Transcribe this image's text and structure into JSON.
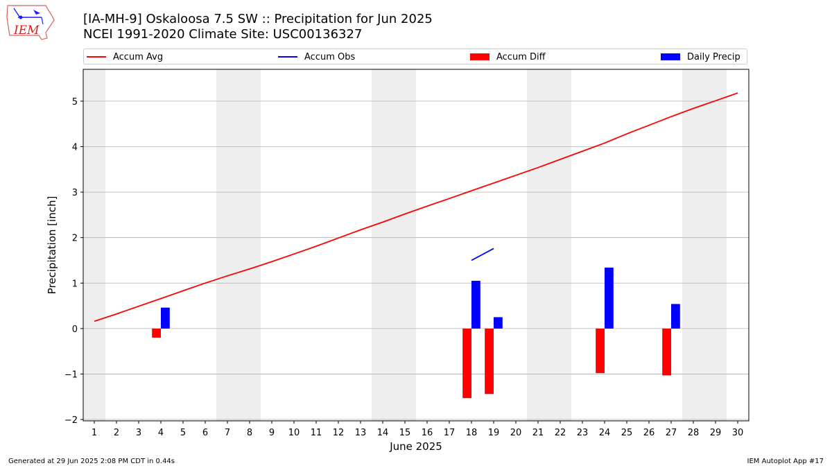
{
  "header": {
    "title_line1": "[IA-MH-9] Oskaloosa 7.5 SW :: Precipitation for Jun 2025",
    "title_line2": "NCEI 1991-2020 Climate Site: USC00136327"
  },
  "logo": {
    "text": "IEM",
    "icon": "iem-iowa-logo"
  },
  "footer": {
    "left": "Generated at 29 Jun 2025 2:08 PM CDT in 0.44s",
    "right": "IEM Autoplot App #17"
  },
  "colors": {
    "avg": "#ff0000",
    "obs": "#0000ff",
    "diff": "#ff0000",
    "daily": "#0000ff",
    "weekend_band": "#eeeeee",
    "grid": "#b0b0b0"
  },
  "chart_data": {
    "type": "bar",
    "xlabel": "June 2025",
    "ylabel": "Precipitation [inch]",
    "xlim": [
      0.5,
      30.5
    ],
    "ylim": [
      -2.03,
      5.7
    ],
    "yticks": [
      -2,
      -1,
      0,
      1,
      2,
      3,
      4,
      5
    ],
    "ytick_labels": [
      "−2",
      "−1",
      "0",
      "1",
      "2",
      "3",
      "4",
      "5"
    ],
    "x_days": [
      1,
      2,
      3,
      4,
      5,
      6,
      7,
      8,
      9,
      10,
      11,
      12,
      13,
      14,
      15,
      16,
      17,
      18,
      19,
      20,
      21,
      22,
      23,
      24,
      25,
      26,
      27,
      28,
      29,
      30
    ],
    "weekend_spans": [
      [
        0.5,
        1.5
      ],
      [
        6.5,
        8.5
      ],
      [
        13.5,
        15.5
      ],
      [
        20.5,
        22.5
      ],
      [
        27.5,
        29.5
      ]
    ],
    "legend": [
      "Accum Avg",
      "Accum Obs",
      "Accum Diff",
      "Daily Precip"
    ],
    "grid": "horizontal",
    "series": [
      {
        "name": "Accum Avg",
        "kind": "line",
        "x": [
          1,
          2,
          3,
          4,
          5,
          6,
          7,
          8,
          9,
          10,
          11,
          12,
          13,
          14,
          15,
          16,
          17,
          18,
          19,
          20,
          21,
          22,
          23,
          24,
          25,
          26,
          27,
          28,
          29,
          30
        ],
        "values": [
          0.16,
          0.32,
          0.49,
          0.66,
          0.83,
          1.0,
          1.16,
          1.31,
          1.47,
          1.64,
          1.81,
          1.99,
          2.17,
          2.34,
          2.52,
          2.69,
          2.86,
          3.03,
          3.2,
          3.37,
          3.54,
          3.72,
          3.9,
          4.08,
          4.28,
          4.47,
          4.66,
          4.84,
          5.01,
          5.18
        ]
      },
      {
        "name": "Accum Obs",
        "kind": "line",
        "x": [
          18,
          19
        ],
        "values": [
          1.5,
          1.76
        ]
      },
      {
        "name": "Accum Diff",
        "kind": "bar",
        "offset": -0.2,
        "x": [
          4,
          18,
          19,
          24,
          27
        ],
        "values": [
          -0.2,
          -1.53,
          -1.44,
          -0.98,
          -1.03
        ]
      },
      {
        "name": "Daily Precip",
        "kind": "bar",
        "offset": 0.2,
        "x": [
          4,
          18,
          19,
          24,
          27
        ],
        "values": [
          0.46,
          1.05,
          0.25,
          1.34,
          0.54
        ]
      }
    ]
  }
}
